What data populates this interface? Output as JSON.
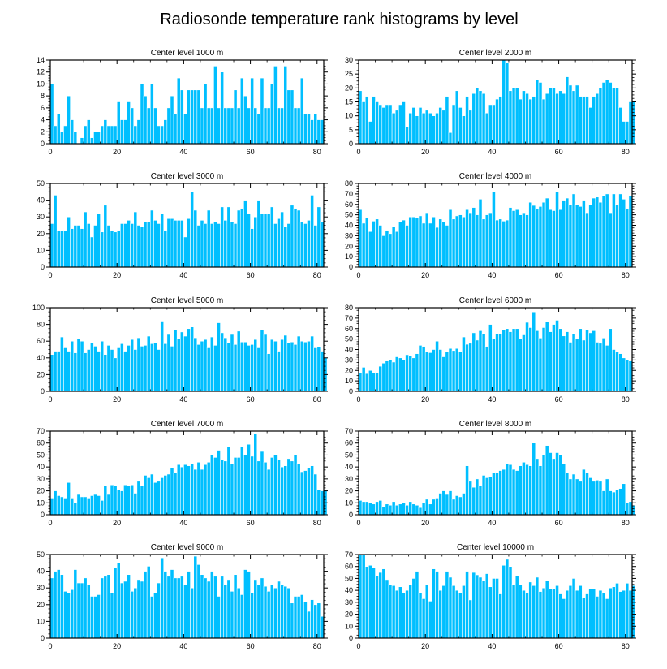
{
  "title": "Radiosonde temperature rank histograms by level",
  "colors": {
    "bar": "#00bfff",
    "bar_edge": "#ffffff",
    "axis": "#000000"
  },
  "chart_data": [
    {
      "type": "bar",
      "title": "Center level 1000 m",
      "xlim": [
        0,
        82
      ],
      "ylim": [
        0,
        14
      ],
      "xticks": [
        0,
        20,
        40,
        60,
        80
      ],
      "yticks": [
        0,
        2,
        4,
        6,
        8,
        10,
        12,
        14
      ],
      "values": [
        10,
        3,
        5,
        2,
        3,
        8,
        4,
        2,
        0,
        1,
        3,
        4,
        1,
        2,
        2,
        3,
        4,
        3,
        3,
        3,
        7,
        4,
        4,
        7,
        6,
        3,
        4,
        10,
        8,
        6,
        10,
        6,
        3,
        3,
        4,
        6,
        8,
        5,
        11,
        9,
        5,
        9,
        9,
        9,
        9,
        6,
        10,
        6,
        6,
        13,
        6,
        12,
        6,
        6,
        6,
        9,
        6,
        11,
        8,
        6,
        11,
        6,
        5,
        11,
        6,
        6,
        10,
        13,
        6,
        6,
        13,
        9,
        9,
        6,
        6,
        11,
        5,
        5,
        4,
        5,
        4,
        4
      ]
    },
    {
      "type": "bar",
      "title": "Center level 2000 m",
      "xlim": [
        0,
        82
      ],
      "ylim": [
        0,
        30
      ],
      "xticks": [
        0,
        20,
        40,
        60,
        80
      ],
      "yticks": [
        0,
        5,
        10,
        15,
        20,
        25,
        30
      ],
      "values": [
        19,
        15,
        17,
        8,
        17,
        15,
        14,
        13,
        14,
        14,
        11,
        12,
        14,
        15,
        6,
        11,
        13,
        10,
        13,
        11,
        12,
        11,
        10,
        11,
        13,
        12,
        17,
        4,
        14,
        19,
        13,
        10,
        17,
        12,
        18,
        20,
        19,
        18,
        11,
        14,
        14,
        16,
        17,
        30,
        29,
        19,
        20,
        20,
        16,
        19,
        18,
        16,
        17,
        23,
        22,
        16,
        18,
        20,
        20,
        18,
        19,
        18,
        24,
        21,
        19,
        21,
        17,
        17,
        17,
        13,
        17,
        18,
        20,
        22,
        23,
        22,
        20,
        20,
        13,
        8,
        8,
        15,
        15
      ]
    },
    {
      "type": "bar",
      "title": "Center level 3000 m",
      "xlim": [
        0,
        82
      ],
      "ylim": [
        0,
        50
      ],
      "xticks": [
        0,
        20,
        40,
        60,
        80
      ],
      "yticks": [
        0,
        10,
        20,
        30,
        40,
        50
      ],
      "values": [
        26,
        43,
        22,
        22,
        22,
        30,
        23,
        25,
        25,
        23,
        33,
        26,
        18,
        25,
        32,
        21,
        37,
        25,
        22,
        21,
        22,
        26,
        26,
        28,
        26,
        33,
        25,
        24,
        27,
        27,
        34,
        28,
        26,
        32,
        22,
        29,
        29,
        28,
        28,
        28,
        18,
        29,
        45,
        34,
        25,
        28,
        26,
        34,
        26,
        27,
        26,
        36,
        28,
        36,
        27,
        26,
        34,
        35,
        40,
        32,
        23,
        30,
        40,
        32,
        32,
        32,
        36,
        26,
        29,
        33,
        24,
        26,
        37,
        35,
        34,
        27,
        26,
        28,
        43,
        25,
        36,
        27
      ]
    },
    {
      "type": "bar",
      "title": "Center level 4000 m",
      "xlim": [
        0,
        82
      ],
      "ylim": [
        0,
        80
      ],
      "xticks": [
        0,
        20,
        40,
        60,
        80
      ],
      "yticks": [
        0,
        10,
        20,
        30,
        40,
        50,
        60,
        70,
        80
      ],
      "values": [
        55,
        42,
        47,
        34,
        44,
        46,
        40,
        30,
        35,
        32,
        39,
        34,
        43,
        45,
        40,
        48,
        48,
        47,
        49,
        42,
        52,
        42,
        48,
        38,
        46,
        43,
        40,
        55,
        46,
        49,
        50,
        48,
        55,
        52,
        57,
        50,
        65,
        46,
        50,
        52,
        72,
        45,
        46,
        44,
        45,
        57,
        54,
        55,
        50,
        52,
        50,
        62,
        59,
        56,
        58,
        62,
        66,
        55,
        54,
        72,
        55,
        64,
        66,
        60,
        70,
        60,
        58,
        64,
        52,
        60,
        66,
        67,
        62,
        68,
        70,
        52,
        70,
        60,
        70,
        65,
        56,
        68
      ]
    },
    {
      "type": "bar",
      "title": "Center level 5000 m",
      "xlim": [
        0,
        82
      ],
      "ylim": [
        0,
        100
      ],
      "xticks": [
        0,
        20,
        40,
        60,
        80
      ],
      "yticks": [
        0,
        20,
        40,
        60,
        80,
        100
      ],
      "values": [
        44,
        48,
        48,
        65,
        52,
        48,
        60,
        46,
        63,
        60,
        46,
        50,
        58,
        54,
        48,
        60,
        44,
        55,
        50,
        40,
        52,
        57,
        48,
        55,
        62,
        50,
        64,
        54,
        55,
        66,
        57,
        58,
        50,
        84,
        57,
        68,
        54,
        74,
        63,
        71,
        66,
        75,
        77,
        64,
        56,
        60,
        62,
        52,
        65,
        55,
        82,
        70,
        64,
        58,
        68,
        56,
        72,
        59,
        59,
        55,
        56,
        62,
        52,
        74,
        68,
        45,
        62,
        60,
        48,
        62,
        67,
        58,
        59,
        56,
        66,
        60,
        59,
        60,
        66,
        52,
        53,
        48,
        40
      ]
    },
    {
      "type": "bar",
      "title": "Center level 6000 m",
      "xlim": [
        0,
        82
      ],
      "ylim": [
        0,
        80
      ],
      "xticks": [
        0,
        20,
        40,
        60,
        80
      ],
      "yticks": [
        0,
        10,
        20,
        30,
        40,
        50,
        60,
        70,
        80
      ],
      "values": [
        18,
        23,
        17,
        20,
        18,
        18,
        24,
        27,
        29,
        30,
        28,
        33,
        32,
        30,
        35,
        34,
        32,
        36,
        44,
        43,
        38,
        37,
        40,
        48,
        40,
        33,
        38,
        41,
        39,
        41,
        38,
        52,
        45,
        46,
        56,
        49,
        58,
        55,
        43,
        64,
        50,
        55,
        55,
        59,
        60,
        57,
        60,
        60,
        50,
        54,
        66,
        61,
        76,
        58,
        51,
        61,
        67,
        57,
        64,
        68,
        60,
        53,
        57,
        47,
        55,
        50,
        60,
        49,
        59,
        56,
        58,
        47,
        46,
        51,
        44,
        60,
        40,
        38,
        36,
        32,
        30,
        29
      ]
    },
    {
      "type": "bar",
      "title": "Center level 7000 m",
      "xlim": [
        0,
        82
      ],
      "ylim": [
        0,
        70
      ],
      "xticks": [
        0,
        20,
        40,
        60,
        80
      ],
      "yticks": [
        0,
        10,
        20,
        30,
        40,
        50,
        60,
        70
      ],
      "values": [
        14,
        20,
        16,
        15,
        14,
        27,
        14,
        10,
        17,
        15,
        15,
        14,
        16,
        17,
        16,
        12,
        24,
        17,
        25,
        24,
        21,
        20,
        25,
        24,
        25,
        18,
        28,
        24,
        33,
        31,
        34,
        27,
        28,
        31,
        33,
        34,
        39,
        35,
        42,
        40,
        42,
        41,
        43,
        38,
        44,
        38,
        42,
        44,
        50,
        48,
        54,
        46,
        45,
        57,
        43,
        48,
        48,
        57,
        50,
        59,
        49,
        68,
        45,
        53,
        44,
        38,
        48,
        50,
        46,
        40,
        41,
        47,
        45,
        50,
        43,
        36,
        37,
        39,
        41,
        34,
        21,
        20,
        20
      ]
    },
    {
      "type": "bar",
      "title": "Center level 8000 m",
      "xlim": [
        0,
        82
      ],
      "ylim": [
        0,
        70
      ],
      "xticks": [
        0,
        20,
        40,
        60,
        80
      ],
      "yticks": [
        0,
        10,
        20,
        30,
        40,
        50,
        60,
        70
      ],
      "values": [
        12,
        11,
        11,
        10,
        9,
        11,
        12,
        7,
        9,
        8,
        11,
        8,
        9,
        10,
        8,
        11,
        9,
        8,
        6,
        10,
        13,
        9,
        13,
        14,
        18,
        20,
        17,
        20,
        13,
        16,
        15,
        18,
        41,
        28,
        23,
        30,
        24,
        33,
        31,
        32,
        35,
        35,
        37,
        38,
        43,
        42,
        38,
        37,
        41,
        44,
        42,
        41,
        60,
        47,
        41,
        50,
        58,
        52,
        47,
        52,
        50,
        43,
        35,
        30,
        34,
        30,
        28,
        38,
        35,
        31,
        28,
        29,
        28,
        20,
        30,
        20,
        19,
        21,
        22,
        26,
        10,
        11,
        8
      ]
    },
    {
      "type": "bar",
      "title": "Center level 9000 m",
      "xlim": [
        0,
        82
      ],
      "ylim": [
        0,
        50
      ],
      "xticks": [
        0,
        20,
        40,
        60,
        80
      ],
      "yticks": [
        0,
        10,
        20,
        30,
        40,
        50
      ],
      "values": [
        36,
        40,
        41,
        38,
        28,
        27,
        29,
        41,
        33,
        33,
        36,
        32,
        25,
        25,
        26,
        36,
        37,
        38,
        27,
        42,
        45,
        33,
        34,
        38,
        28,
        30,
        35,
        34,
        40,
        43,
        25,
        27,
        33,
        48,
        40,
        37,
        41,
        36,
        36,
        37,
        32,
        40,
        30,
        49,
        44,
        38,
        36,
        34,
        40,
        37,
        25,
        37,
        32,
        35,
        28,
        38,
        30,
        26,
        41,
        40,
        27,
        35,
        32,
        36,
        31,
        28,
        32,
        30,
        34,
        32,
        31,
        30,
        21,
        25,
        25,
        26,
        22,
        16,
        23,
        20,
        21,
        13
      ]
    },
    {
      "type": "bar",
      "title": "Center level 10000 m",
      "xlim": [
        0,
        82
      ],
      "ylim": [
        0,
        70
      ],
      "xticks": [
        0,
        20,
        40,
        60,
        80
      ],
      "yticks": [
        0,
        10,
        20,
        30,
        40,
        50,
        60,
        70
      ],
      "values": [
        70,
        70,
        60,
        61,
        59,
        52,
        55,
        58,
        49,
        45,
        44,
        40,
        43,
        38,
        40,
        45,
        50,
        56,
        38,
        33,
        45,
        31,
        58,
        56,
        40,
        44,
        56,
        51,
        44,
        40,
        38,
        44,
        56,
        32,
        55,
        53,
        51,
        48,
        54,
        43,
        50,
        50,
        37,
        61,
        66,
        60,
        45,
        52,
        45,
        40,
        38,
        47,
        44,
        51,
        39,
        42,
        48,
        41,
        41,
        44,
        37,
        33,
        40,
        44,
        50,
        40,
        44,
        34,
        37,
        41,
        41,
        35,
        40,
        38,
        33,
        42,
        43,
        46,
        39,
        40,
        46,
        40,
        44
      ]
    }
  ]
}
